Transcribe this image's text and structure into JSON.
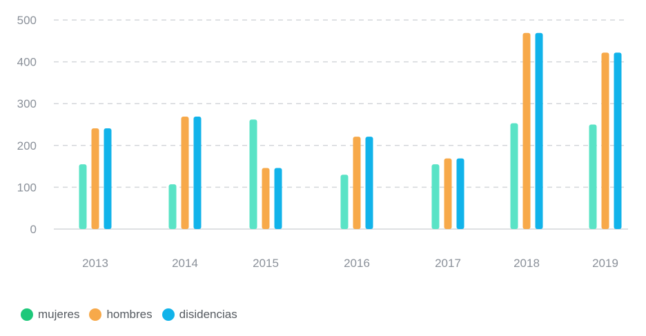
{
  "chart_data": {
    "type": "bar",
    "categories": [
      "2013",
      "2014",
      "2015",
      "2016",
      "2017",
      "2018",
      "2019"
    ],
    "series": [
      {
        "name": "mujeres",
        "color": "#5ae3c6",
        "values": [
          155,
          107,
          262,
          130,
          155,
          253,
          250
        ]
      },
      {
        "name": "hombres",
        "color": "#f7a94a",
        "values": [
          241,
          269,
          146,
          221,
          169,
          469,
          422
        ]
      },
      {
        "name": "disidencias",
        "color": "#11b3ea",
        "values": [
          241,
          269,
          146,
          221,
          169,
          469,
          422
        ]
      }
    ],
    "ylim": [
      0,
      500
    ],
    "yticks": [
      0,
      100,
      200,
      300,
      400,
      500
    ],
    "grid": true,
    "legend_position": "bottom-left",
    "legend_colors": [
      "#1ec87a",
      "#f7a94a",
      "#11b3ea"
    ]
  }
}
